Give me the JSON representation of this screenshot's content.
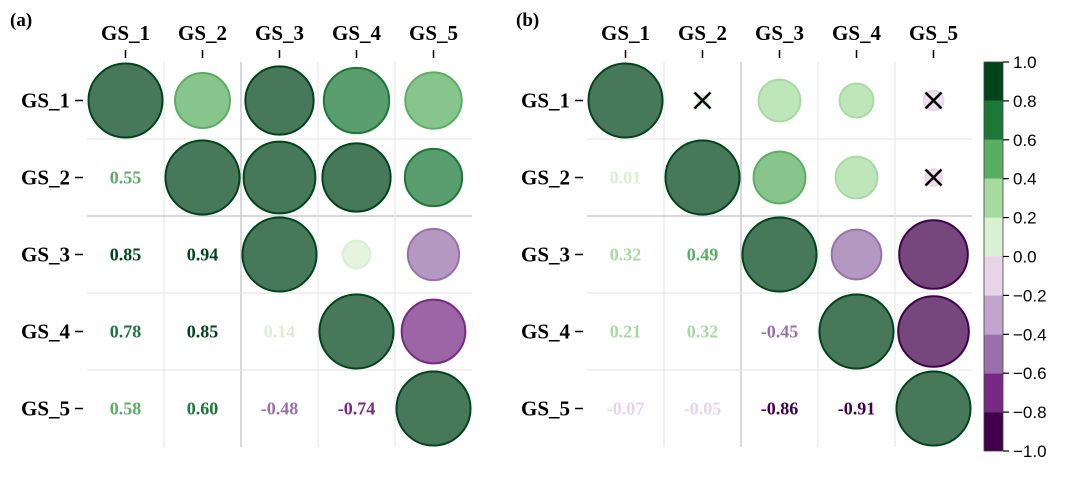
{
  "colors": {
    "scale": [
      {
        "from": -1.0,
        "to": -0.8,
        "color": "#40004b"
      },
      {
        "from": -0.8,
        "to": -0.6,
        "color": "#762a83"
      },
      {
        "from": -0.6,
        "to": -0.4,
        "color": "#9970ab"
      },
      {
        "from": -0.4,
        "to": -0.2,
        "color": "#c2a5cf"
      },
      {
        "from": -0.2,
        "to": 0.0,
        "color": "#e7d4e8"
      },
      {
        "from": 0.0,
        "to": 0.2,
        "color": "#d9f0d3"
      },
      {
        "from": 0.2,
        "to": 0.4,
        "color": "#a6dba0"
      },
      {
        "from": 0.4,
        "to": 0.6,
        "color": "#5aae61"
      },
      {
        "from": 0.6,
        "to": 0.8,
        "color": "#1b7837"
      },
      {
        "from": 0.8,
        "to": 1.0,
        "color": "#00441b"
      }
    ],
    "circle_outline": "#1b5e34",
    "cross": "#000000"
  },
  "chart_data": [
    {
      "type": "heatmap",
      "panel_label": "(a)",
      "variables": [
        "GS_1",
        "GS_2",
        "GS_3",
        "GS_4",
        "GS_5"
      ],
      "upper_triangle": "circles",
      "lower_triangle": "values",
      "matrix": [
        [
          1.0,
          0.55,
          0.85,
          0.78,
          0.58
        ],
        [
          0.55,
          1.0,
          0.94,
          0.85,
          0.6
        ],
        [
          0.85,
          0.94,
          1.0,
          0.14,
          -0.48
        ],
        [
          0.78,
          0.85,
          0.14,
          1.0,
          -0.74
        ],
        [
          0.58,
          0.6,
          -0.48,
          -0.74,
          1.0
        ]
      ],
      "value_labels": [
        [
          "",
          "",
          "",
          "",
          ""
        ],
        [
          "0.55",
          "",
          "",
          "",
          ""
        ],
        [
          "0.85",
          "0.94",
          "",
          "",
          ""
        ],
        [
          "0.78",
          "0.85",
          "0.14",
          "",
          ""
        ],
        [
          "0.58",
          "0.60",
          "-0.48",
          "-0.74",
          ""
        ]
      ],
      "not_significant": []
    },
    {
      "type": "heatmap",
      "panel_label": "(b)",
      "variables": [
        "GS_1",
        "GS_2",
        "GS_3",
        "GS_4",
        "GS_5"
      ],
      "upper_triangle": "circles",
      "lower_triangle": "values",
      "matrix": [
        [
          1.0,
          0.01,
          0.32,
          0.21,
          -0.07
        ],
        [
          0.01,
          1.0,
          0.49,
          0.32,
          -0.05
        ],
        [
          0.32,
          0.49,
          1.0,
          -0.45,
          -0.86
        ],
        [
          0.21,
          0.32,
          -0.45,
          1.0,
          -0.91
        ],
        [
          -0.07,
          -0.05,
          -0.86,
          -0.91,
          1.0
        ]
      ],
      "value_labels": [
        [
          "",
          "",
          "",
          "",
          ""
        ],
        [
          "0.01",
          "",
          "",
          "",
          ""
        ],
        [
          "0.32",
          "0.49",
          "",
          "",
          ""
        ],
        [
          "0.21",
          "0.32",
          "-0.45",
          "",
          ""
        ],
        [
          "-0.07",
          "-0.05",
          "-0.86",
          "-0.91",
          ""
        ]
      ],
      "not_significant": [
        [
          0,
          1
        ],
        [
          0,
          4
        ],
        [
          1,
          4
        ]
      ]
    }
  ],
  "colorbar": {
    "range": [
      -1.0,
      1.0
    ],
    "ticks": [
      "1.0",
      "0.8",
      "0.6",
      "0.4",
      "0.2",
      "0.0",
      "−0.2",
      "−0.4",
      "−0.6",
      "−0.8",
      "−1.0"
    ],
    "tick_values": [
      1.0,
      0.8,
      0.6,
      0.4,
      0.2,
      0.0,
      -0.2,
      -0.4,
      -0.6,
      -0.8,
      -1.0
    ]
  }
}
